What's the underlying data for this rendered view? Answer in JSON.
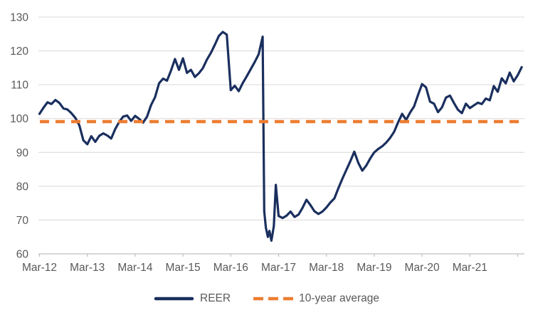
{
  "colors": {
    "background": "#ffffff",
    "reer_line": "#1b2f5e",
    "average_line": "#ed7d31",
    "gridline": "#d9d9d9",
    "axis": "#bfbfbf",
    "tick_label": "#595959",
    "legend_text": "#595959"
  },
  "legend": {
    "reer_label": "REER",
    "average_label": "10-year average"
  },
  "chart_data": {
    "type": "line",
    "title": "",
    "xlabel": "",
    "ylabel": "",
    "grid": "horizontal",
    "legend_position": "bottom-center",
    "ylim": [
      60,
      130
    ],
    "y_ticks": [
      60,
      70,
      80,
      90,
      100,
      110,
      120,
      130
    ],
    "x_unit": "months since Mar-2012",
    "xlim": [
      0,
      121.5
    ],
    "x_tick_interval_months": 12,
    "x_tick_labels": [
      "Mar-12",
      "Mar-13",
      "Mar-14",
      "Mar-15",
      "Mar-16",
      "Mar-17",
      "Mar-18",
      "Mar-19",
      "Mar-20",
      "Mar-21"
    ],
    "series": [
      {
        "name": "REER",
        "style": "solid",
        "color": "#1b2f5e",
        "points": [
          [
            0,
            101.4
          ],
          [
            1,
            103.2
          ],
          [
            2,
            104.8
          ],
          [
            3,
            104.3
          ],
          [
            4,
            105.5
          ],
          [
            5,
            104.6
          ],
          [
            6,
            103.0
          ],
          [
            7,
            102.7
          ],
          [
            8,
            101.6
          ],
          [
            9,
            100.2
          ],
          [
            10,
            98.0
          ],
          [
            11,
            93.6
          ],
          [
            12,
            92.4
          ],
          [
            13,
            94.8
          ],
          [
            14,
            93.1
          ],
          [
            15,
            94.9
          ],
          [
            16,
            95.6
          ],
          [
            17,
            95.0
          ],
          [
            18,
            94.1
          ],
          [
            19,
            96.9
          ],
          [
            20,
            99.0
          ],
          [
            21,
            100.6
          ],
          [
            22,
            100.9
          ],
          [
            23,
            99.3
          ],
          [
            24,
            100.8
          ],
          [
            25,
            99.9
          ],
          [
            26,
            98.8
          ],
          [
            27,
            100.6
          ],
          [
            28,
            104.0
          ],
          [
            29,
            106.3
          ],
          [
            30,
            110.4
          ],
          [
            31,
            111.8
          ],
          [
            32,
            111.2
          ],
          [
            33,
            114.2
          ],
          [
            34,
            117.6
          ],
          [
            35,
            114.4
          ],
          [
            36,
            117.8
          ],
          [
            37,
            113.5
          ],
          [
            38,
            114.4
          ],
          [
            39,
            112.3
          ],
          [
            40,
            113.4
          ],
          [
            41,
            114.9
          ],
          [
            42,
            117.4
          ],
          [
            43,
            119.4
          ],
          [
            44,
            121.8
          ],
          [
            45,
            124.4
          ],
          [
            46,
            125.6
          ],
          [
            47,
            124.8
          ],
          [
            48,
            108.4
          ],
          [
            49,
            109.7
          ],
          [
            50,
            108.1
          ],
          [
            51,
            110.5
          ],
          [
            52,
            112.5
          ],
          [
            53,
            114.6
          ],
          [
            54,
            116.7
          ],
          [
            55,
            119.0
          ],
          [
            56,
            124.2
          ],
          [
            56.4,
            72.6
          ],
          [
            56.8,
            67.8
          ],
          [
            57.3,
            65.0
          ],
          [
            57.7,
            66.8
          ],
          [
            58.2,
            63.9
          ],
          [
            58.8,
            68.2
          ],
          [
            59.3,
            80.4
          ],
          [
            60,
            71.2
          ],
          [
            61,
            70.6
          ],
          [
            62,
            71.3
          ],
          [
            63,
            72.5
          ],
          [
            64,
            70.9
          ],
          [
            65,
            71.6
          ],
          [
            66,
            73.6
          ],
          [
            67,
            76.0
          ],
          [
            68,
            74.4
          ],
          [
            69,
            72.6
          ],
          [
            70,
            71.8
          ],
          [
            71,
            72.5
          ],
          [
            72,
            73.7
          ],
          [
            73,
            75.2
          ],
          [
            74,
            76.4
          ],
          [
            75,
            79.4
          ],
          [
            76,
            82.2
          ],
          [
            77,
            84.8
          ],
          [
            78,
            87.4
          ],
          [
            79,
            90.2
          ],
          [
            80,
            86.9
          ],
          [
            81,
            84.6
          ],
          [
            82,
            86.1
          ],
          [
            83,
            88.2
          ],
          [
            84,
            90.0
          ],
          [
            85,
            91.0
          ],
          [
            86,
            91.8
          ],
          [
            87,
            92.9
          ],
          [
            88,
            94.3
          ],
          [
            89,
            96.1
          ],
          [
            90,
            98.9
          ],
          [
            91,
            101.4
          ],
          [
            92,
            99.6
          ],
          [
            93,
            101.8
          ],
          [
            94,
            103.6
          ],
          [
            95,
            107.0
          ],
          [
            96,
            110.2
          ],
          [
            97,
            109.2
          ],
          [
            98,
            105.0
          ],
          [
            99,
            104.4
          ],
          [
            100,
            101.9
          ],
          [
            101,
            103.3
          ],
          [
            102,
            106.2
          ],
          [
            103,
            106.8
          ],
          [
            104,
            104.6
          ],
          [
            105,
            102.6
          ],
          [
            106,
            101.6
          ],
          [
            107,
            104.4
          ],
          [
            108,
            103.1
          ],
          [
            109,
            103.9
          ],
          [
            110,
            104.7
          ],
          [
            111,
            104.3
          ],
          [
            112,
            105.9
          ],
          [
            113,
            105.4
          ],
          [
            114,
            109.6
          ],
          [
            115,
            107.9
          ],
          [
            116,
            111.9
          ],
          [
            117,
            110.4
          ],
          [
            118,
            113.6
          ],
          [
            119,
            111.0
          ],
          [
            120,
            112.8
          ],
          [
            121,
            115.2
          ]
        ]
      },
      {
        "name": "10-year average",
        "style": "dashed",
        "color": "#ed7d31",
        "value": 99.1
      }
    ]
  }
}
